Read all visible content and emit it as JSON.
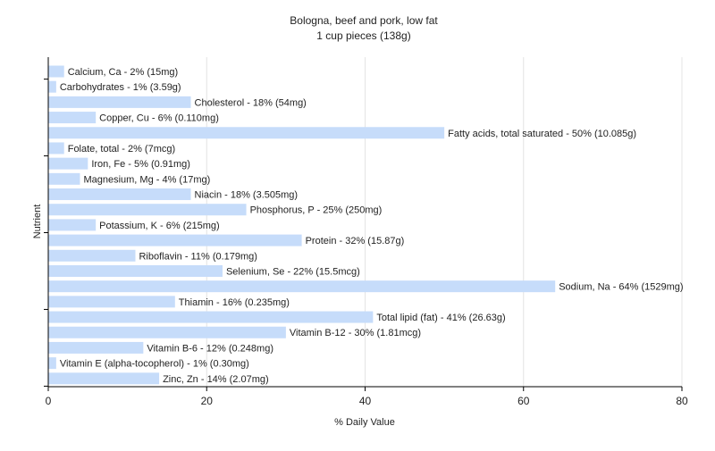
{
  "chart_data": {
    "type": "bar",
    "orientation": "horizontal",
    "title": "Bologna, beef and pork, low fat",
    "subtitle": "1 cup pieces (138g)",
    "xlabel": "% Daily Value",
    "ylabel": "Nutrient",
    "xlim": [
      0,
      80
    ],
    "xticks": [
      "0",
      "20",
      "40",
      "60",
      "80"
    ],
    "grid": true,
    "bar_color": "#c6dcfa",
    "categories": [
      "Calcium, Ca",
      "Carbohydrates",
      "Cholesterol",
      "Copper, Cu",
      "Fatty acids, total saturated",
      "Folate, total",
      "Iron, Fe",
      "Magnesium, Mg",
      "Niacin",
      "Phosphorus, P",
      "Potassium, K",
      "Protein",
      "Riboflavin",
      "Selenium, Se",
      "Sodium, Na",
      "Thiamin",
      "Total lipid (fat)",
      "Vitamin B-12",
      "Vitamin B-6",
      "Vitamin E (alpha-tocopherol)",
      "Zinc, Zn"
    ],
    "values": [
      2,
      1,
      18,
      6,
      50,
      2,
      5,
      4,
      18,
      25,
      6,
      32,
      11,
      22,
      64,
      16,
      41,
      30,
      12,
      1,
      14
    ],
    "labels": [
      "Calcium, Ca - 2% (15mg)",
      "Carbohydrates - 1% (3.59g)",
      "Cholesterol - 18% (54mg)",
      "Copper, Cu - 6% (0.110mg)",
      "Fatty acids, total saturated - 50% (10.085g)",
      "Folate, total - 2% (7mcg)",
      "Iron, Fe - 5% (0.91mg)",
      "Magnesium, Mg - 4% (17mg)",
      "Niacin - 18% (3.505mg)",
      "Phosphorus, P - 25% (250mg)",
      "Potassium, K - 6% (215mg)",
      "Protein - 32% (15.87g)",
      "Riboflavin - 11% (0.179mg)",
      "Selenium, Se - 22% (15.5mcg)",
      "Sodium, Na - 64% (1529mg)",
      "Thiamin - 16% (0.235mg)",
      "Total lipid (fat) - 41% (26.63g)",
      "Vitamin B-12 - 30% (1.81mcg)",
      "Vitamin B-6 - 12% (0.248mg)",
      "Vitamin E (alpha-tocopherol) - 1% (0.30mg)",
      "Zinc, Zn - 14% (2.07mg)"
    ]
  }
}
